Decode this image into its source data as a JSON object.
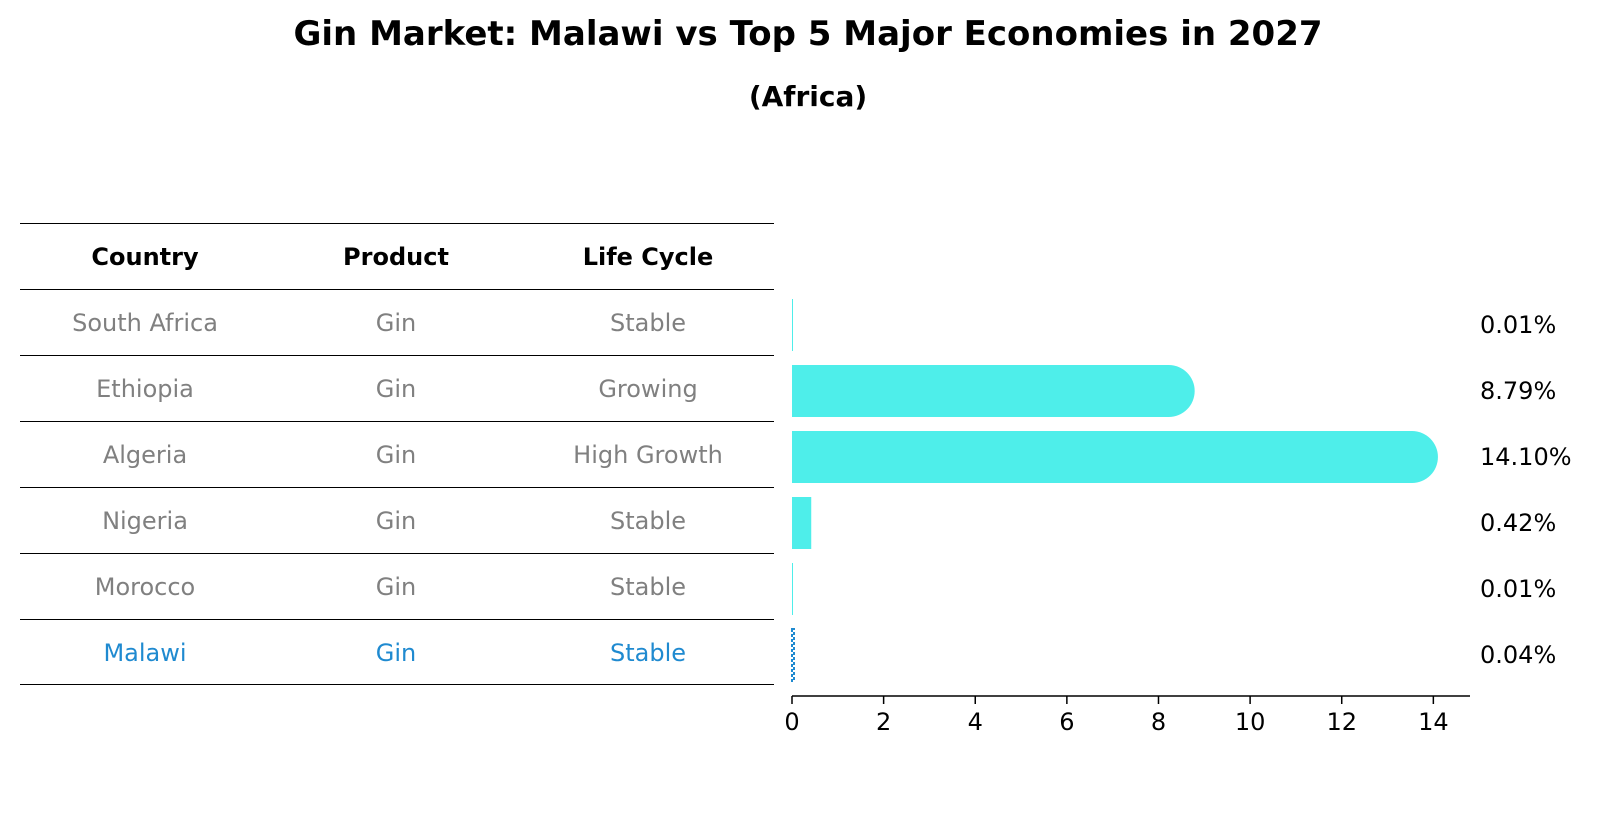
{
  "title": "Gin Market: Malawi vs Top 5 Major Economies in 2027",
  "subtitle": "(Africa)",
  "table": {
    "headers": [
      "Country",
      "Product",
      "Life Cycle"
    ],
    "rows": [
      {
        "country": "South Africa",
        "product": "Gin",
        "life_cycle": "Stable"
      },
      {
        "country": "Ethiopia",
        "product": "Gin",
        "life_cycle": "Growing"
      },
      {
        "country": "Algeria",
        "product": "Gin",
        "life_cycle": "High Growth"
      },
      {
        "country": "Nigeria",
        "product": "Gin",
        "life_cycle": "Stable"
      },
      {
        "country": "Morocco",
        "product": "Gin",
        "life_cycle": "Stable"
      },
      {
        "country": "Malawi",
        "product": "Gin",
        "life_cycle": "Stable"
      }
    ]
  },
  "chart_data": {
    "type": "bar",
    "orientation": "horizontal",
    "categories": [
      "South Africa",
      "Ethiopia",
      "Algeria",
      "Nigeria",
      "Morocco",
      "Malawi"
    ],
    "values": [
      0.01,
      8.79,
      14.1,
      0.42,
      0.01,
      0.04
    ],
    "value_labels": [
      "0.01%",
      "8.79%",
      "14.10%",
      "0.42%",
      "0.01%",
      "0.04%"
    ],
    "highlight": "Malawi",
    "xlim": [
      0,
      14.8
    ],
    "xticks": [
      0,
      2,
      4,
      6,
      8,
      10,
      12,
      14
    ],
    "bar_color": "#4eeeea",
    "highlight_color": "#1f8ad0",
    "grid": false
  }
}
